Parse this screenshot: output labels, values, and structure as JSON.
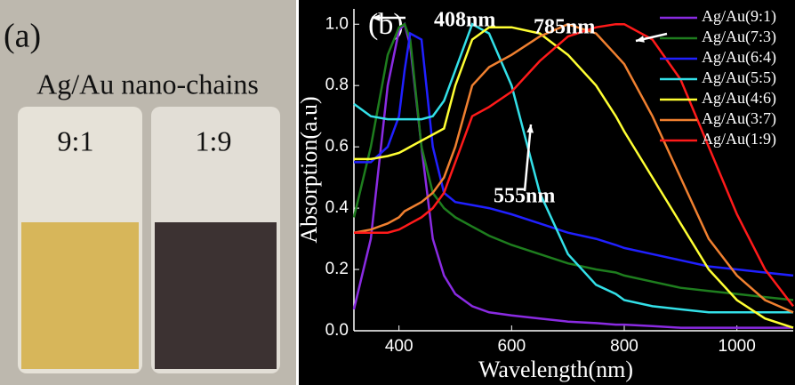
{
  "panel_a": {
    "label": "(a)",
    "title": "Ag/Au nano-chains",
    "samples": [
      "9:1",
      "1:9"
    ]
  },
  "chart_data": {
    "type": "line",
    "panel_label": "(b)",
    "x_label": "Wavelength(nm)",
    "y_label": "Absorption(a.u)",
    "x": [
      320,
      350,
      380,
      400,
      410,
      420,
      440,
      460,
      480,
      500,
      530,
      560,
      600,
      650,
      700,
      750,
      785,
      800,
      850,
      900,
      950,
      1000,
      1050,
      1100
    ],
    "series": [
      {
        "name": "Ag/Au(9:1)",
        "color": "#8a2be2",
        "values": [
          0.07,
          0.3,
          0.8,
          0.98,
          1.0,
          0.93,
          0.6,
          0.3,
          0.18,
          0.12,
          0.08,
          0.06,
          0.05,
          0.04,
          0.03,
          0.025,
          0.02,
          0.02,
          0.015,
          0.01,
          0.01,
          0.01,
          0.01,
          0.01
        ]
      },
      {
        "name": "Ag/Au(7:3)",
        "color": "#1e7d1e",
        "values": [
          0.37,
          0.6,
          0.9,
          0.99,
          1.0,
          0.95,
          0.6,
          0.45,
          0.4,
          0.37,
          0.34,
          0.31,
          0.28,
          0.25,
          0.22,
          0.2,
          0.19,
          0.18,
          0.16,
          0.14,
          0.13,
          0.12,
          0.11,
          0.1
        ]
      },
      {
        "name": "Ag/Au(6:4)",
        "color": "#2020ff",
        "values": [
          0.55,
          0.55,
          0.6,
          0.7,
          0.85,
          0.97,
          0.95,
          0.6,
          0.45,
          0.42,
          0.41,
          0.4,
          0.38,
          0.35,
          0.32,
          0.3,
          0.28,
          0.27,
          0.25,
          0.23,
          0.21,
          0.2,
          0.19,
          0.18
        ]
      },
      {
        "name": "Ag/Au(5:5)",
        "color": "#33e0e8",
        "values": [
          0.74,
          0.7,
          0.69,
          0.69,
          0.69,
          0.69,
          0.69,
          0.7,
          0.75,
          0.85,
          1.0,
          0.97,
          0.8,
          0.45,
          0.25,
          0.15,
          0.12,
          0.1,
          0.08,
          0.07,
          0.06,
          0.06,
          0.06,
          0.06
        ]
      },
      {
        "name": "Ag/Au(4:6)",
        "color": "#ffff33",
        "values": [
          0.56,
          0.56,
          0.57,
          0.58,
          0.59,
          0.6,
          0.62,
          0.64,
          0.66,
          0.8,
          0.95,
          0.99,
          0.99,
          0.97,
          0.9,
          0.8,
          0.7,
          0.65,
          0.5,
          0.35,
          0.2,
          0.1,
          0.04,
          0.01
        ]
      },
      {
        "name": "Ag/Au(3:7)",
        "color": "#f08030",
        "values": [
          0.32,
          0.33,
          0.35,
          0.37,
          0.39,
          0.4,
          0.42,
          0.45,
          0.5,
          0.6,
          0.8,
          0.86,
          0.9,
          0.96,
          1.0,
          0.97,
          0.9,
          0.87,
          0.7,
          0.5,
          0.3,
          0.18,
          0.1,
          0.06
        ]
      },
      {
        "name": "Ag/Au(1:9)",
        "color": "#ff1a1a",
        "values": [
          0.32,
          0.32,
          0.32,
          0.33,
          0.34,
          0.35,
          0.37,
          0.4,
          0.45,
          0.55,
          0.7,
          0.73,
          0.78,
          0.88,
          0.96,
          0.99,
          1.0,
          1.0,
          0.95,
          0.82,
          0.6,
          0.38,
          0.2,
          0.08
        ]
      }
    ],
    "xlim": [
      320,
      1100
    ],
    "xticks": [
      400,
      600,
      800,
      1000
    ],
    "ylim": [
      0,
      1.05
    ],
    "yticks": [
      {
        "value": 0,
        "label": "0.0"
      },
      0.2,
      0.4,
      0.6,
      0.8,
      {
        "value": 1,
        "label": "1.0"
      }
    ],
    "legend": "upper right",
    "annotations": [
      "408nm",
      "785nm",
      "555nm"
    ]
  }
}
